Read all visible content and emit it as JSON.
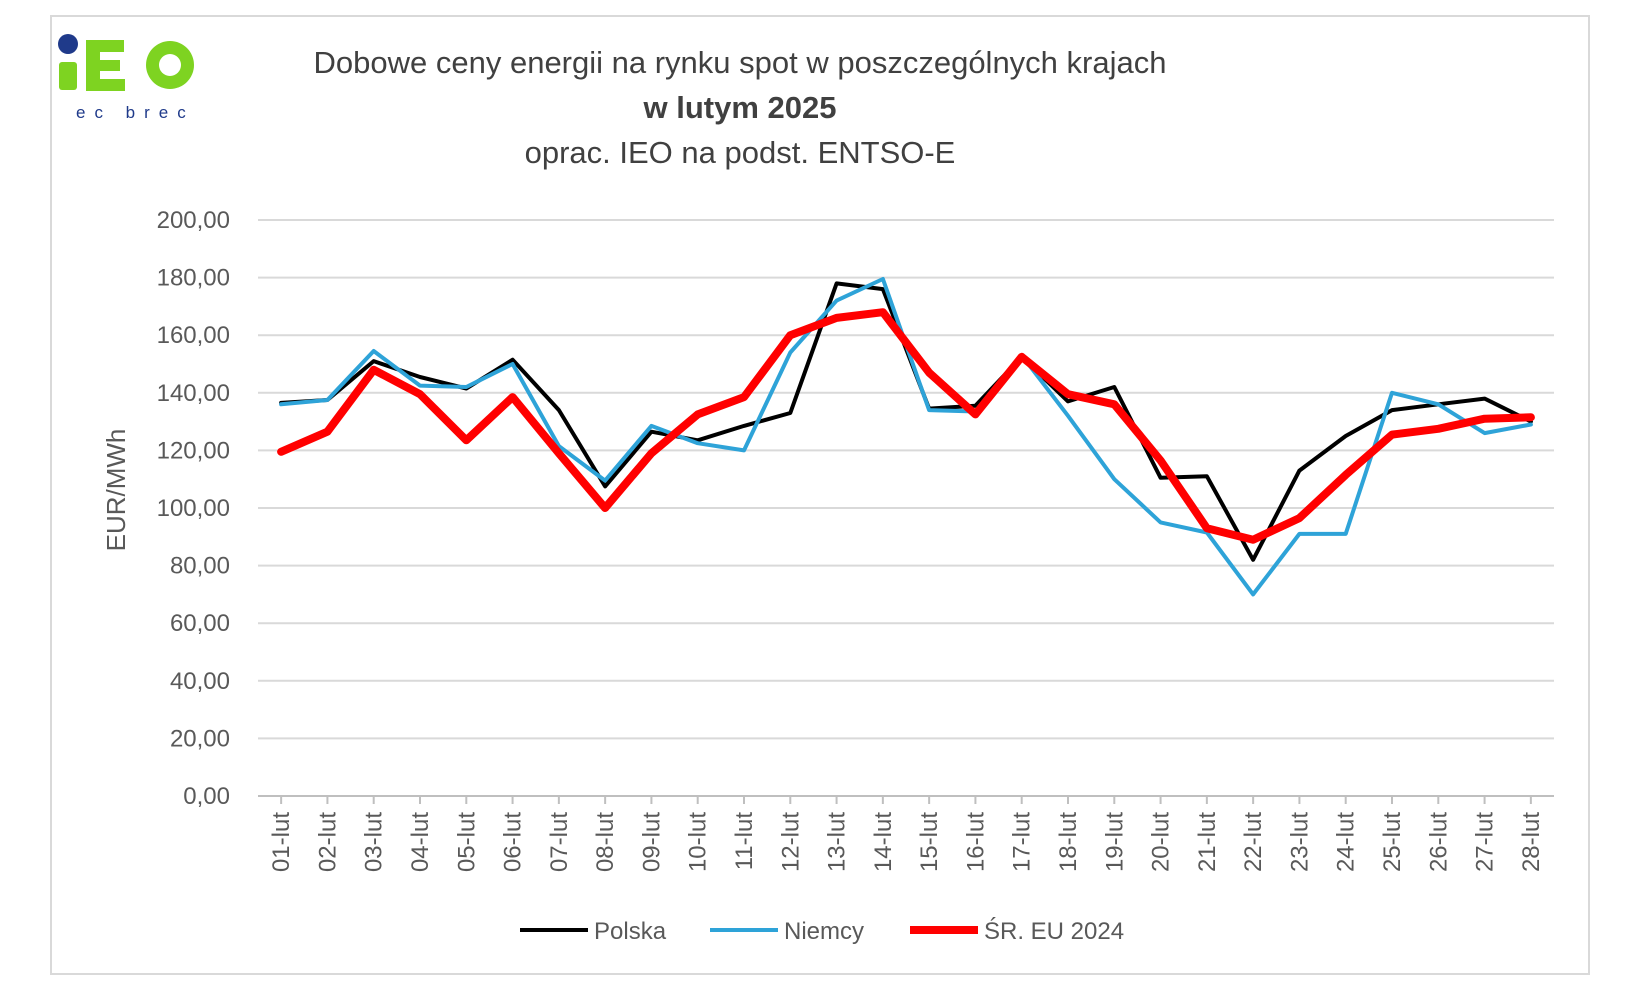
{
  "logo": {
    "text": "IEO",
    "sub": "ec brec"
  },
  "chart_data": {
    "type": "line",
    "title": "Dobowe ceny energii na rynku spot w poszczególnych krajach",
    "subtitle": "w lutym 2025",
    "note": "oprac. IEO na podst. ENTSO-E",
    "xlabel": "",
    "ylabel": "EUR/MWh",
    "ylim": [
      0,
      200
    ],
    "yticks": [
      "0,00",
      "20,00",
      "40,00",
      "60,00",
      "80,00",
      "100,00",
      "120,00",
      "140,00",
      "160,00",
      "180,00",
      "200,00"
    ],
    "grid": true,
    "legend": "bottom",
    "categories": [
      "01-lut",
      "02-lut",
      "03-lut",
      "04-lut",
      "05-lut",
      "06-lut",
      "07-lut",
      "08-lut",
      "09-lut",
      "10-lut",
      "11-lut",
      "12-lut",
      "13-lut",
      "14-lut",
      "15-lut",
      "16-lut",
      "17-lut",
      "18-lut",
      "19-lut",
      "20-lut",
      "21-lut",
      "22-lut",
      "23-lut",
      "24-lut",
      "25-lut",
      "26-lut",
      "27-lut",
      "28-lut"
    ],
    "series": [
      {
        "name": "Polska",
        "color": "#000000",
        "width": 4,
        "values": [
          136.5,
          137.5,
          151,
          145.5,
          141.5,
          151.5,
          134,
          107.5,
          126.5,
          123.5,
          128.5,
          133,
          178,
          176,
          134.5,
          135.5,
          152.5,
          137,
          142,
          110.5,
          111,
          82,
          113,
          125,
          134,
          136,
          138,
          130
        ]
      },
      {
        "name": "Niemcy",
        "color": "#2ea3d8",
        "width": 4,
        "values": [
          136,
          137.5,
          154.5,
          142.5,
          142,
          150,
          121.5,
          109.5,
          128.5,
          122.5,
          120,
          154,
          172,
          179.5,
          134,
          133.5,
          153,
          132,
          110,
          95,
          91.5,
          70,
          91,
          91,
          140,
          136,
          126,
          129
        ]
      },
      {
        "name": "ŚR. EU 2024",
        "color": "#ff0000",
        "width": 8,
        "values": [
          119.5,
          126.5,
          148,
          139.5,
          123.5,
          138.5,
          119,
          100,
          119,
          132.5,
          138.5,
          160,
          166,
          168,
          147,
          132.5,
          152.5,
          139.5,
          136,
          116.5,
          93,
          89,
          96.5,
          111.5,
          125.5,
          127.5,
          131,
          131.5
        ]
      }
    ]
  }
}
